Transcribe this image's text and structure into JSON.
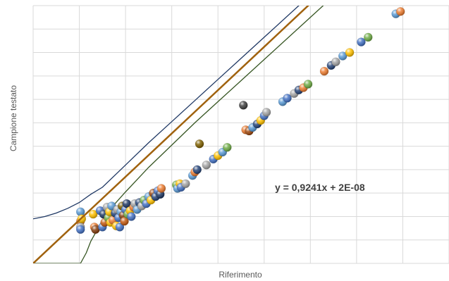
{
  "chart_data": {
    "type": "scatter",
    "title": "",
    "xlabel": "Riferimento",
    "ylabel": "Campione testato",
    "xlim": [
      0,
      18
    ],
    "ylim": [
      0,
      11
    ],
    "grid": true,
    "legend": "none",
    "equation": "y = 0,9241x + 2E-08",
    "colors": {
      "regression": "#a0620e",
      "upper_band": "#1f3864",
      "lower_band": "#375623",
      "grid": "#d9d9d9"
    },
    "regression": {
      "slope": 0.9241,
      "intercept": 0
    },
    "upper_band": [
      [
        0,
        1.9
      ],
      [
        0.5,
        2.0
      ],
      [
        1.0,
        2.15
      ],
      [
        1.5,
        2.35
      ],
      [
        2.0,
        2.6
      ],
      [
        2.5,
        2.95
      ],
      [
        3,
        3.25
      ],
      [
        4,
        4.2
      ],
      [
        5,
        5.15
      ],
      [
        6,
        6.05
      ],
      [
        7,
        6.95
      ],
      [
        8,
        7.85
      ],
      [
        9,
        8.75
      ],
      [
        10,
        9.65
      ],
      [
        12,
        11.45
      ],
      [
        14,
        13.25
      ],
      [
        16,
        15.05
      ],
      [
        18,
        16.85
      ]
    ],
    "lower_band": [
      [
        0,
        0
      ],
      [
        2.05,
        0
      ],
      [
        2.3,
        0.45
      ],
      [
        2.5,
        0.95
      ],
      [
        2.7,
        1.3
      ],
      [
        3.0,
        1.85
      ],
      [
        3.5,
        2.5
      ],
      [
        4,
        3.05
      ],
      [
        5,
        4.1
      ],
      [
        6,
        5.05
      ],
      [
        7,
        6.0
      ],
      [
        8,
        6.9
      ],
      [
        9,
        7.8
      ],
      [
        10,
        8.7
      ],
      [
        12,
        10.5
      ],
      [
        14,
        12.3
      ],
      [
        16,
        14.1
      ],
      [
        18,
        15.9
      ]
    ],
    "points": [
      {
        "x": 2.05,
        "y": 2.2,
        "color": "#5b9bd5"
      },
      {
        "x": 2.05,
        "y": 1.8,
        "color": "#ed7d31"
      },
      {
        "x": 2.05,
        "y": 1.55,
        "color": "#a5a5a5"
      },
      {
        "x": 2.05,
        "y": 1.45,
        "color": "#4472c4"
      },
      {
        "x": 2.1,
        "y": 1.9,
        "color": "#ffc000"
      },
      {
        "x": 2.6,
        "y": 2.1,
        "color": "#ffc000"
      },
      {
        "x": 2.65,
        "y": 1.55,
        "color": "#ed7d31"
      },
      {
        "x": 2.7,
        "y": 1.45,
        "color": "#843c0c"
      },
      {
        "x": 2.9,
        "y": 2.25,
        "color": "#4472c4"
      },
      {
        "x": 3.0,
        "y": 1.55,
        "color": "#4472c4"
      },
      {
        "x": 3.05,
        "y": 2.1,
        "color": "#1f3864"
      },
      {
        "x": 3.1,
        "y": 1.75,
        "color": "#c55a11"
      },
      {
        "x": 3.2,
        "y": 2.4,
        "color": "#a5a5a5"
      },
      {
        "x": 3.25,
        "y": 1.95,
        "color": "#70ad47"
      },
      {
        "x": 3.3,
        "y": 2.2,
        "color": "#ffc000"
      },
      {
        "x": 3.35,
        "y": 1.75,
        "color": "#ffc000"
      },
      {
        "x": 3.4,
        "y": 2.45,
        "color": "#5b9bd5"
      },
      {
        "x": 3.45,
        "y": 1.85,
        "color": "#ed7d31"
      },
      {
        "x": 3.55,
        "y": 2.15,
        "color": "#264478"
      },
      {
        "x": 3.6,
        "y": 1.6,
        "color": "#ffc000"
      },
      {
        "x": 3.65,
        "y": 2.3,
        "color": "#a5a5a5"
      },
      {
        "x": 3.7,
        "y": 1.95,
        "color": "#4472c4"
      },
      {
        "x": 3.75,
        "y": 1.55,
        "color": "#4472c4"
      },
      {
        "x": 3.8,
        "y": 2.2,
        "color": "#5b9bd5"
      },
      {
        "x": 3.85,
        "y": 2.45,
        "color": "#7f6000"
      },
      {
        "x": 3.9,
        "y": 2.05,
        "color": "#843c0c"
      },
      {
        "x": 3.95,
        "y": 1.8,
        "color": "#c55a11"
      },
      {
        "x": 4.0,
        "y": 2.3,
        "color": "#4472c4"
      },
      {
        "x": 4.05,
        "y": 2.55,
        "color": "#1f3864"
      },
      {
        "x": 4.1,
        "y": 2.1,
        "color": "#70ad47"
      },
      {
        "x": 4.2,
        "y": 2.25,
        "color": "#ffc000"
      },
      {
        "x": 4.25,
        "y": 2.0,
        "color": "#4472c4"
      },
      {
        "x": 4.35,
        "y": 2.4,
        "color": "#ed7d31"
      },
      {
        "x": 4.4,
        "y": 2.55,
        "color": "#a5a5a5"
      },
      {
        "x": 4.5,
        "y": 2.3,
        "color": "#5b9bd5"
      },
      {
        "x": 4.6,
        "y": 2.6,
        "color": "#264478"
      },
      {
        "x": 4.7,
        "y": 2.45,
        "color": "#a5a5a5"
      },
      {
        "x": 4.8,
        "y": 2.7,
        "color": "#70ad47"
      },
      {
        "x": 4.9,
        "y": 2.55,
        "color": "#4472c4"
      },
      {
        "x": 5.0,
        "y": 2.85,
        "color": "#5b9bd5"
      },
      {
        "x": 5.1,
        "y": 2.7,
        "color": "#ffc000"
      },
      {
        "x": 5.2,
        "y": 3.0,
        "color": "#9e480e"
      },
      {
        "x": 5.3,
        "y": 2.85,
        "color": "#264478"
      },
      {
        "x": 5.4,
        "y": 3.1,
        "color": "#4472c4"
      },
      {
        "x": 5.5,
        "y": 2.95,
        "color": "#1f3864"
      },
      {
        "x": 5.55,
        "y": 3.2,
        "color": "#ed7d31"
      },
      {
        "x": 6.2,
        "y": 3.35,
        "color": "#70ad47"
      },
      {
        "x": 6.25,
        "y": 3.2,
        "color": "#5b9bd5"
      },
      {
        "x": 6.35,
        "y": 3.4,
        "color": "#ffc000"
      },
      {
        "x": 6.4,
        "y": 3.25,
        "color": "#4472c4"
      },
      {
        "x": 6.6,
        "y": 3.4,
        "color": "#a5a5a5"
      },
      {
        "x": 6.9,
        "y": 3.75,
        "color": "#5b9bd5"
      },
      {
        "x": 7.0,
        "y": 3.9,
        "color": "#ed7d31"
      },
      {
        "x": 7.1,
        "y": 4.0,
        "color": "#264478"
      },
      {
        "x": 7.2,
        "y": 5.1,
        "color": "#7f6000"
      },
      {
        "x": 7.5,
        "y": 4.2,
        "color": "#a5a5a5"
      },
      {
        "x": 7.8,
        "y": 4.45,
        "color": "#4472c4"
      },
      {
        "x": 8.0,
        "y": 4.6,
        "color": "#ffc000"
      },
      {
        "x": 8.2,
        "y": 4.75,
        "color": "#5b9bd5"
      },
      {
        "x": 8.4,
        "y": 4.95,
        "color": "#70ad47"
      },
      {
        "x": 9.1,
        "y": 6.75,
        "color": "#404040"
      },
      {
        "x": 9.2,
        "y": 5.7,
        "color": "#ed7d31"
      },
      {
        "x": 9.35,
        "y": 5.65,
        "color": "#9e480e"
      },
      {
        "x": 9.5,
        "y": 5.8,
        "color": "#5b9bd5"
      },
      {
        "x": 9.7,
        "y": 5.95,
        "color": "#264478"
      },
      {
        "x": 9.85,
        "y": 6.1,
        "color": "#ffc000"
      },
      {
        "x": 10.0,
        "y": 6.3,
        "color": "#4472c4"
      },
      {
        "x": 10.1,
        "y": 6.45,
        "color": "#a5a5a5"
      },
      {
        "x": 10.8,
        "y": 6.9,
        "color": "#5b9bd5"
      },
      {
        "x": 11.0,
        "y": 7.05,
        "color": "#4472c4"
      },
      {
        "x": 11.3,
        "y": 7.25,
        "color": "#a5a5a5"
      },
      {
        "x": 11.5,
        "y": 7.4,
        "color": "#264478"
      },
      {
        "x": 11.7,
        "y": 7.5,
        "color": "#ed7d31"
      },
      {
        "x": 11.9,
        "y": 7.65,
        "color": "#70ad47"
      },
      {
        "x": 12.6,
        "y": 8.2,
        "color": "#ed7d31"
      },
      {
        "x": 12.9,
        "y": 8.45,
        "color": "#264478"
      },
      {
        "x": 13.1,
        "y": 8.6,
        "color": "#a5a5a5"
      },
      {
        "x": 13.4,
        "y": 8.85,
        "color": "#5b9bd5"
      },
      {
        "x": 13.7,
        "y": 9.0,
        "color": "#ffc000"
      },
      {
        "x": 14.2,
        "y": 9.45,
        "color": "#4472c4"
      },
      {
        "x": 14.5,
        "y": 9.65,
        "color": "#70ad47"
      },
      {
        "x": 15.7,
        "y": 10.65,
        "color": "#5b9bd5"
      },
      {
        "x": 15.9,
        "y": 10.75,
        "color": "#ed7d31"
      }
    ]
  }
}
